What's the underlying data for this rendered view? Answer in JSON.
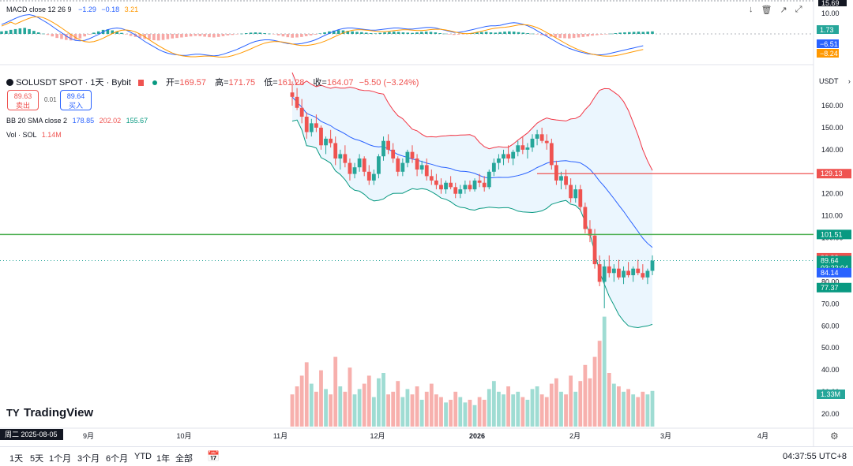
{
  "macd": {
    "label": "MACD close 12 26 9",
    "v1": "−1.29",
    "v2": "−0.18",
    "v3": "3.21",
    "axis": [
      "15.69",
      "10.00"
    ],
    "tags": [
      {
        "value": "1.73",
        "color": "#26a69a"
      },
      {
        "value": "−6.51",
        "color": "#2962ff"
      },
      {
        "value": "−8.24",
        "color": "#ff9800"
      }
    ],
    "hist": [
      1,
      1.2,
      1.6,
      1.9,
      2.2,
      2.4,
      1.9,
      1.2,
      0.6,
      0.1,
      -0.4,
      -1.0,
      -1.6,
      -2.0,
      -2.4,
      -2.6,
      -2.3,
      -1.8,
      -1.0,
      -0.3,
      0.5,
      1.0,
      1.6,
      1.8,
      1.4,
      1.0,
      0.4,
      -0.2,
      -0.8,
      -1.2,
      -1.6,
      -2.0,
      -2.2,
      -2.5,
      -2.6,
      -2.4,
      -2.1,
      -1.8,
      -1.6,
      -1.4,
      -1.2,
      -1.0,
      -0.8,
      -0.9,
      -1.1,
      -1.3,
      -1.4,
      -1.2,
      -0.9,
      -0.6,
      -0.4,
      -0.2,
      0.1,
      0.3,
      0.5,
      0.6,
      0.5,
      0.3,
      0.1,
      -0.2,
      -0.6,
      -1.0,
      -1.3,
      -1.5,
      -1.4,
      -1.2,
      -0.9,
      -0.6,
      -0.3,
      0.2,
      0.6,
      1.0,
      1.3,
      1.5,
      1.4,
      1.2,
      1.0,
      0.8,
      0.7,
      0.5,
      0.3,
      0.2,
      0.4,
      0.6,
      0.8,
      0.9,
      0.8,
      0.6,
      0.5,
      0.4,
      0.6,
      0.8,
      0.9,
      0.8,
      0.6,
      0.3,
      0.1,
      -0.2,
      -0.4,
      -0.3,
      -0.1,
      0.2,
      0.4,
      0.6,
      0.7,
      0.8,
      0.6,
      0.5,
      0.7,
      0.9,
      1.0,
      0.9,
      0.7,
      0.5,
      0.3,
      0.1,
      -0.2,
      -0.5,
      -0.8,
      -1.1,
      -1.4,
      -1.6,
      -1.7,
      -1.8,
      -1.6,
      -1.4,
      -1.2,
      -1.0,
      -0.7,
      -0.5,
      -0.3,
      -0.2,
      0.1,
      0.3,
      0.5,
      0.6,
      0.7,
      0.8,
      0.9,
      0.8,
      0.9,
      1.0
    ],
    "macd_line": [
      3.5,
      4.2,
      5.0,
      5.8,
      6.5,
      7.0,
      7.2,
      6.8,
      6.0,
      5.0,
      4.0,
      2.8,
      1.6,
      0.4,
      -0.8,
      -1.8,
      -2.4,
      -2.6,
      -2.4,
      -1.8,
      -1.0,
      -0.2,
      0.8,
      1.6,
      2.0,
      2.2,
      2.0,
      1.4,
      0.6,
      -0.4,
      -1.6,
      -2.8,
      -3.8,
      -4.8,
      -5.8,
      -6.6,
      -7.2,
      -7.6,
      -7.8,
      -8.0,
      -8.0,
      -7.8,
      -7.6,
      -7.6,
      -7.8,
      -8.0,
      -8.2,
      -8.0,
      -7.6,
      -7.0,
      -6.4,
      -5.8,
      -5.0,
      -4.2,
      -3.4,
      -2.8,
      -2.4,
      -2.2,
      -2.2,
      -2.4,
      -2.8,
      -3.2,
      -3.6,
      -3.8,
      -3.8,
      -3.6,
      -3.2,
      -2.8,
      -2.2,
      -1.4,
      -0.6,
      0.2,
      1.0,
      1.6,
      2.0,
      2.2,
      2.2,
      2.0,
      1.8,
      1.6,
      1.4,
      1.4,
      1.6,
      1.8,
      2.0,
      2.2,
      2.2,
      2.0,
      1.8,
      1.8,
      2.0,
      2.2,
      2.4,
      2.4,
      2.2,
      1.8,
      1.4,
      1.0,
      0.6,
      0.6,
      0.8,
      1.2,
      1.6,
      2.0,
      2.4,
      2.8,
      3.0,
      3.0,
      3.2,
      3.6,
      4.0,
      4.2,
      4.0,
      3.6,
      3.0,
      2.2,
      1.2,
      0.2,
      -0.8,
      -1.8,
      -2.8,
      -3.8,
      -4.6,
      -5.4,
      -6.0,
      -6.6,
      -7.0,
      -7.4,
      -7.6,
      -7.8,
      -7.8,
      -7.6,
      -7.2,
      -6.8,
      -6.4,
      -6.0,
      -5.6,
      -5.2,
      -4.8,
      -4.4
    ]
  },
  "toolbar": {
    "icons": [
      "↓",
      "🗑",
      "↗",
      "⤢"
    ]
  },
  "symbol": {
    "ticker": "SOLUSDT SPOT · 1天 · Bybit",
    "open_label": "开=",
    "open": "169.57",
    "high_label": "高=",
    "high": "171.75",
    "low_label": "低=",
    "low": "161.28",
    "close_label": "收=",
    "close": "164.07",
    "change": "−5.50 (−3.24%)"
  },
  "trade": {
    "sell_price": "89.63",
    "sell_label": "卖出",
    "spread": "0.01",
    "buy_price": "89.64",
    "buy_label": "买入"
  },
  "bb": {
    "label": "BB 20 SMA close 2",
    "basis": "178.85",
    "upper": "202.02",
    "lower": "155.67"
  },
  "vol": {
    "label": "Vol · SOL",
    "value": "1.14M"
  },
  "price_axis": {
    "currency": "USDT",
    "ticks": [
      "160.00",
      "150.00",
      "140.00",
      "130.00",
      "120.00",
      "110.00",
      "100.00",
      "90.00",
      "80.00",
      "70.00",
      "60.00",
      "50.00",
      "40.00",
      "30.00",
      "20.00"
    ],
    "tags": [
      {
        "value": "129.13",
        "color": "#ef5350",
        "price": 129.13
      },
      {
        "value": "101.51",
        "color": "#089981",
        "price": 101.51
      },
      {
        "value": "90.92",
        "color": "#ef5350",
        "price": 90.92
      },
      {
        "value": "89.64",
        "color": "#089981",
        "price": 89.64
      },
      {
        "value": "03:22:04",
        "color": "#089981",
        "price": 86.3
      },
      {
        "value": "84.14",
        "color": "#2962ff",
        "price": 84.14
      },
      {
        "value": "77.37",
        "color": "#089981",
        "price": 77.37
      }
    ],
    "volume_tag": "1.33M"
  },
  "h_lines": {
    "red": 129.13,
    "green": 101.51
  },
  "time_axis": {
    "labels": [
      "9月",
      "10月",
      "11月",
      "12月",
      "2026",
      "2月",
      "3月",
      "4月"
    ],
    "date_badge": "周二 2025-08-05"
  },
  "logo": "TradingView",
  "bottom": {
    "timeframes": [
      "1天",
      "5天",
      "1个月",
      "3个月",
      "6个月",
      "YTD",
      "1年",
      "全部"
    ],
    "clock": "04:37:55 UTC+8"
  },
  "colors": {
    "up": "#26a69a",
    "down": "#ef5350",
    "bb_band": "#e3f2fd",
    "upper": "#f23645",
    "basis": "#2962ff",
    "lower": "#089981"
  },
  "chart_data": {
    "type": "candlestick",
    "ylim": [
      60,
      175
    ],
    "candles": [
      [
        166,
        171,
        160,
        164
      ],
      [
        164,
        168,
        158,
        159
      ],
      [
        159,
        163,
        152,
        155
      ],
      [
        155,
        157,
        145,
        148
      ],
      [
        148,
        154,
        146,
        152
      ],
      [
        152,
        156,
        148,
        150
      ],
      [
        150,
        151,
        140,
        142
      ],
      [
        142,
        146,
        138,
        145
      ],
      [
        145,
        149,
        141,
        143
      ],
      [
        143,
        146,
        133,
        136
      ],
      [
        136,
        140,
        131,
        138
      ],
      [
        138,
        142,
        132,
        134
      ],
      [
        134,
        136,
        126,
        129
      ],
      [
        129,
        134,
        127,
        132
      ],
      [
        132,
        138,
        130,
        136
      ],
      [
        136,
        137,
        128,
        130
      ],
      [
        130,
        133,
        124,
        126
      ],
      [
        126,
        131,
        124,
        129
      ],
      [
        129,
        138,
        127,
        137
      ],
      [
        137,
        146,
        135,
        144
      ],
      [
        144,
        147,
        138,
        140
      ],
      [
        140,
        143,
        134,
        136
      ],
      [
        136,
        137,
        128,
        130
      ],
      [
        130,
        136,
        128,
        134
      ],
      [
        134,
        140,
        132,
        139
      ],
      [
        139,
        142,
        134,
        136
      ],
      [
        136,
        138,
        128,
        131
      ],
      [
        131,
        135,
        129,
        133
      ],
      [
        133,
        136,
        126,
        128
      ],
      [
        128,
        131,
        124,
        126
      ],
      [
        126,
        129,
        122,
        124
      ],
      [
        124,
        127,
        120,
        122
      ],
      [
        122,
        126,
        120,
        125
      ],
      [
        125,
        128,
        122,
        123
      ],
      [
        123,
        125,
        118,
        120
      ],
      [
        120,
        124,
        118,
        122
      ],
      [
        122,
        126,
        120,
        124
      ],
      [
        124,
        126,
        121,
        122
      ],
      [
        122,
        127,
        121,
        126
      ],
      [
        126,
        129,
        123,
        125
      ],
      [
        125,
        128,
        121,
        123
      ],
      [
        123,
        131,
        122,
        130
      ],
      [
        130,
        136,
        128,
        134
      ],
      [
        134,
        138,
        131,
        136
      ],
      [
        136,
        140,
        133,
        138
      ],
      [
        138,
        142,
        134,
        136
      ],
      [
        136,
        140,
        133,
        139
      ],
      [
        139,
        144,
        137,
        142
      ],
      [
        142,
        146,
        138,
        140
      ],
      [
        140,
        143,
        136,
        141
      ],
      [
        141,
        147,
        139,
        145
      ],
      [
        145,
        149,
        142,
        147
      ],
      [
        147,
        150,
        143,
        144
      ],
      [
        144,
        147,
        140,
        143
      ],
      [
        143,
        145,
        131,
        133
      ],
      [
        133,
        135,
        124,
        126
      ],
      [
        126,
        130,
        122,
        128
      ],
      [
        128,
        131,
        122,
        124
      ],
      [
        124,
        127,
        116,
        118
      ],
      [
        118,
        124,
        116,
        122
      ],
      [
        122,
        124,
        112,
        114
      ],
      [
        114,
        116,
        102,
        104
      ],
      [
        104,
        108,
        98,
        101
      ],
      [
        101,
        104,
        86,
        88
      ],
      [
        88,
        92,
        78,
        80
      ],
      [
        80,
        90,
        68,
        87
      ],
      [
        87,
        92,
        82,
        84
      ],
      [
        84,
        88,
        80,
        86
      ],
      [
        86,
        90,
        81,
        82
      ],
      [
        82,
        87,
        79,
        85
      ],
      [
        85,
        89,
        82,
        83
      ],
      [
        83,
        87,
        80,
        86
      ],
      [
        86,
        90,
        83,
        84
      ],
      [
        84,
        88,
        81,
        82
      ],
      [
        82,
        86,
        79,
        85
      ],
      [
        85,
        92,
        83,
        89.64
      ]
    ],
    "volumes": [
      1.2,
      1.5,
      1.9,
      2.4,
      1.6,
      1.3,
      2.1,
      1.4,
      1.2,
      2.6,
      1.5,
      1.3,
      2.2,
      1.2,
      1.4,
      1.6,
      1.9,
      1.1,
      1.8,
      2.0,
      1.2,
      1.3,
      1.7,
      1.1,
      1.4,
      1.2,
      1.5,
      1.0,
      1.3,
      1.6,
      1.2,
      1.1,
      0.9,
      1.0,
      1.3,
      1.1,
      0.9,
      1.0,
      0.8,
      1.1,
      1.0,
      1.4,
      1.7,
      1.3,
      1.2,
      1.5,
      1.2,
      1.3,
      1.1,
      1.0,
      1.4,
      1.5,
      1.2,
      1.1,
      1.6,
      1.8,
      1.3,
      1.2,
      1.9,
      1.3,
      1.7,
      2.3,
      1.8,
      2.6,
      3.2,
      4.1,
      2.0,
      1.6,
      1.5,
      1.3,
      1.4,
      1.2,
      1.1,
      1.3,
      1.2,
      1.33
    ]
  }
}
